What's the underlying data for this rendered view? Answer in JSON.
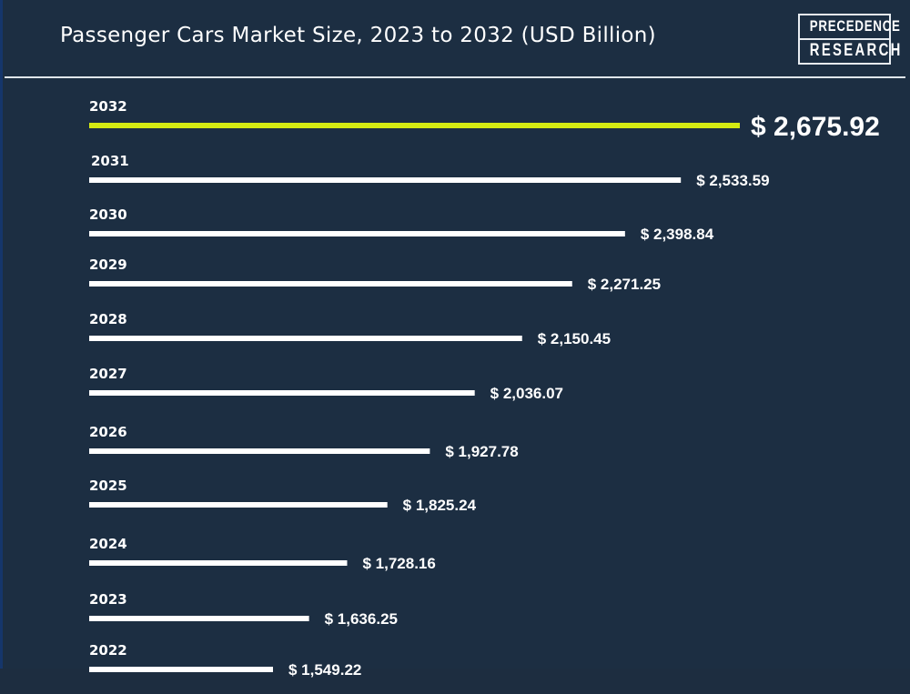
{
  "title": "Passenger Cars Market Size, 2023 to 2032 (USD Billion)",
  "logo": {
    "line1": "PRECEDENCE",
    "line2": "RESEARCH"
  },
  "colors": {
    "background": "#1c2e42",
    "highlight": "#d4ea12",
    "bar": "#ffffff",
    "text": "#ffffff"
  },
  "chart_data": {
    "type": "bar",
    "orientation": "horizontal",
    "title": "Passenger Cars Market Size, 2023 to 2032 (USD Billion)",
    "xlabel": "",
    "ylabel": "",
    "unit": "USD Billion",
    "categories": [
      "2032",
      "2031",
      "2030",
      "2029",
      "2028",
      "2027",
      "2026",
      "2025",
      "2024",
      "2023",
      "2022"
    ],
    "values": [
      2675.92,
      2533.59,
      2398.84,
      2271.25,
      2150.45,
      2036.07,
      1927.78,
      1825.24,
      1728.16,
      1636.25,
      1549.22
    ],
    "labels": [
      "$ 2,675.92",
      "$ 2,533.59",
      "$ 2,398.84",
      "$ 2,271.25",
      "$ 2,150.45",
      "$ 2,036.07",
      "$ 1,927.78",
      "$ 1,825.24",
      "$ 1,728.16",
      "$ 1,636.25",
      "$ 1,549.22"
    ],
    "highlight_category": "2032",
    "grid": false,
    "legend": "none"
  }
}
